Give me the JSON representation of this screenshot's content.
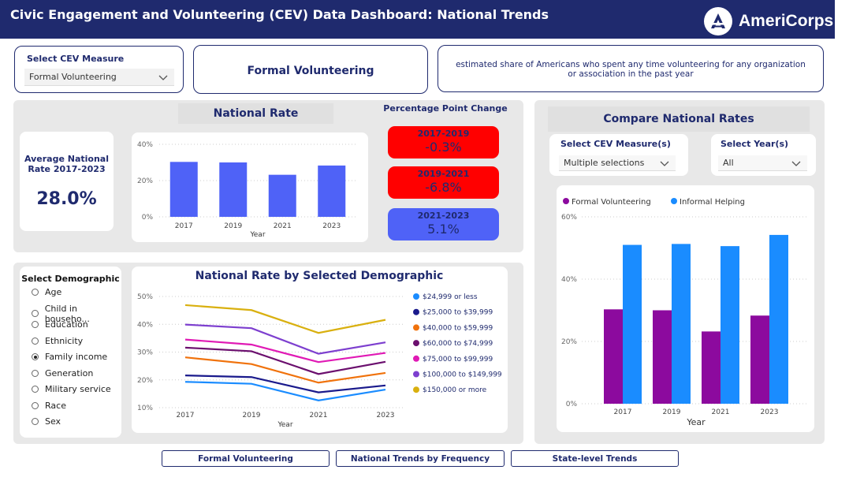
{
  "header": {
    "title": "Civic Engagement and Volunteering (CEV) Data Dashboard: National Trends",
    "logo_text": "AmeriCorps"
  },
  "measure_select": {
    "label": "Select CEV Measure",
    "value": "Formal Volunteering"
  },
  "measure_title": "Formal Volunteering",
  "measure_description": "estimated share of Americans who spent any time volunteering for any organization or association in the past year",
  "national_rate": {
    "heading": "National Rate",
    "avg_label": "Average National Rate 2017-2023",
    "avg_value": "28.0%"
  },
  "ppc": {
    "title": "Percentage Point Change",
    "items": [
      {
        "label": "2017-2019",
        "value": "-0.3%",
        "color": "#ff0000"
      },
      {
        "label": "2019-2021",
        "value": "-6.8%",
        "color": "#ff0000"
      },
      {
        "label": "2021-2023",
        "value": "5.1%",
        "color": "#4f62f7"
      }
    ]
  },
  "demographic": {
    "title": "Select Demographic",
    "items": [
      {
        "label": "Age",
        "selected": false
      },
      {
        "label": "Child in househo...",
        "selected": false
      },
      {
        "label": "Education",
        "selected": false
      },
      {
        "label": "Ethnicity",
        "selected": false
      },
      {
        "label": "Family income",
        "selected": true
      },
      {
        "label": "Generation",
        "selected": false
      },
      {
        "label": "Military service",
        "selected": false
      },
      {
        "label": "Race",
        "selected": false
      },
      {
        "label": "Sex",
        "selected": false
      }
    ]
  },
  "compare": {
    "heading": "Compare National Rates",
    "measure_label": "Select CEV Measure(s)",
    "measure_value": "Multiple selections",
    "year_label": "Select Year(s)",
    "year_value": "All"
  },
  "nav": {
    "buttons": [
      "Formal Volunteering",
      "National Trends by Frequency",
      "State-level Trends"
    ]
  },
  "chart_data": [
    {
      "id": "national_rate",
      "type": "bar",
      "title": "National Rate",
      "categories": [
        "2017",
        "2019",
        "2021",
        "2023"
      ],
      "values": [
        30.3,
        30.0,
        23.2,
        28.3
      ],
      "xlabel": "Year",
      "ylabel": "",
      "ylim": [
        0,
        40
      ],
      "yticks": [
        "0%",
        "20%",
        "40%"
      ],
      "color": "#4f62f7"
    },
    {
      "id": "demographic",
      "type": "line",
      "title": "National Rate by Selected Demographic",
      "x": [
        "2017",
        "2019",
        "2021",
        "2023"
      ],
      "xlabel": "Year",
      "ylim": [
        10,
        50
      ],
      "yticks": [
        "10%",
        "20%",
        "30%",
        "40%",
        "50%"
      ],
      "series": [
        {
          "name": "$24,999 or less",
          "color": "#1a8cff",
          "values": [
            19.3,
            18.6,
            12.6,
            16.5
          ]
        },
        {
          "name": "$25,000 to $39,999",
          "color": "#1a1a8c",
          "values": [
            21.6,
            21.0,
            15.5,
            18.0
          ]
        },
        {
          "name": "$40,000 to $59,999",
          "color": "#f0720c",
          "values": [
            28.1,
            25.7,
            19.0,
            22.5
          ]
        },
        {
          "name": "$60,000 to $74,999",
          "color": "#6b0f6e",
          "values": [
            31.6,
            30.3,
            22.1,
            26.5
          ]
        },
        {
          "name": "$75,000 to $99,999",
          "color": "#e01ab5",
          "values": [
            34.5,
            32.7,
            26.4,
            29.7
          ]
        },
        {
          "name": "$100,000 to $149,999",
          "color": "#7d3fcf",
          "values": [
            39.9,
            38.6,
            29.4,
            33.5
          ]
        },
        {
          "name": "$150,000 or more",
          "color": "#d9b00f",
          "values": [
            46.9,
            45.1,
            36.9,
            41.6
          ]
        }
      ]
    },
    {
      "id": "compare",
      "type": "bar",
      "title": "Compare National Rates",
      "categories": [
        "2017",
        "2019",
        "2021",
        "2023"
      ],
      "xlabel": "Year",
      "ylim": [
        0,
        60
      ],
      "yticks": [
        "0%",
        "20%",
        "40%",
        "60%"
      ],
      "series": [
        {
          "name": "Formal Volunteering",
          "color": "#8c0a9e",
          "values": [
            30.3,
            30.0,
            23.2,
            28.3
          ]
        },
        {
          "name": "Informal Helping",
          "color": "#1a8cff",
          "values": [
            51.0,
            51.3,
            50.6,
            54.2
          ]
        }
      ]
    }
  ]
}
